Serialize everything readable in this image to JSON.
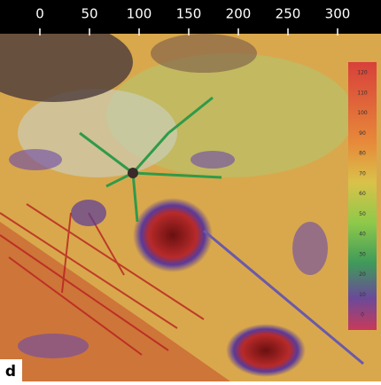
{
  "top_axis": {
    "ticks": [
      0,
      50,
      100,
      150,
      200,
      250,
      300
    ]
  },
  "colorbar": {
    "labels": [
      120,
      110,
      100,
      90,
      80,
      70,
      60,
      50,
      40,
      30,
      20,
      10,
      0
    ]
  },
  "panel_label": "d"
}
